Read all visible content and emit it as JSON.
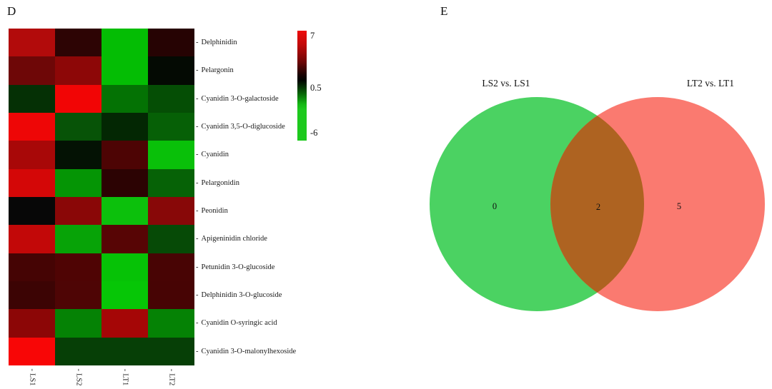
{
  "panels": {
    "heatmap": {
      "label": "D",
      "tick_char": "-",
      "columns": [
        "LS1",
        "LS2",
        "LT1",
        "LT2"
      ],
      "rows": [
        {
          "name": "Delphinidin",
          "colors": [
            "#b20b0b",
            "#2d0404",
            "#04bd04",
            "#260303"
          ]
        },
        {
          "name": "Pelargonin",
          "colors": [
            "#6e0707",
            "#8d0707",
            "#04bd04",
            "#040a03"
          ]
        },
        {
          "name": "Cyanidin 3-O-galactoside",
          "colors": [
            "#053005",
            "#f20505",
            "#047204",
            "#054e05"
          ]
        },
        {
          "name": "Cyanidin 3,5-O-diglucoside",
          "colors": [
            "#ee0606",
            "#075307",
            "#032703",
            "#066006"
          ]
        },
        {
          "name": "Cyanidin",
          "colors": [
            "#a80808",
            "#041204",
            "#4d0404",
            "#09c009"
          ]
        },
        {
          "name": "Pelargonidin",
          "colors": [
            "#d40707",
            "#059505",
            "#2c0303",
            "#066206"
          ]
        },
        {
          "name": "Peonidin",
          "colors": [
            "#070707",
            "#8a0707",
            "#0cc00c",
            "#880808"
          ]
        },
        {
          "name": "Apigeninidin chloride",
          "colors": [
            "#c20808",
            "#07a307",
            "#570505",
            "#064a06"
          ]
        },
        {
          "name": "Petunidin 3-O-glucoside",
          "colors": [
            "#450404",
            "#4f0404",
            "#06c206",
            "#480404"
          ]
        },
        {
          "name": "Delphinidin 3-O-glucoside",
          "colors": [
            "#3c0404",
            "#4e0505",
            "#06c606",
            "#470404"
          ]
        },
        {
          "name": "Cyanidin O-syringic acid",
          "colors": [
            "#8c0606",
            "#058205",
            "#a50606",
            "#058205"
          ]
        },
        {
          "name": "Cyanidin 3-O-malonylhexoside",
          "colors": [
            "#f80606",
            "#063f06",
            "#063f06",
            "#063f06"
          ]
        }
      ],
      "colorbar": {
        "max_label": "7",
        "mid_label": "0.5",
        "min_label": "-6",
        "gradient": [
          [
            "#ee0b0b",
            "0%"
          ],
          [
            "#c00909",
            "13%"
          ],
          [
            "#700606",
            "28%"
          ],
          [
            "#1a0202",
            "40%"
          ],
          [
            "#000300",
            "45%"
          ],
          [
            "#032803",
            "50%"
          ],
          [
            "#076b07",
            "58%"
          ],
          [
            "#15b815",
            "67%"
          ],
          [
            "#1dc91d",
            "72%"
          ],
          [
            "#1dc91d",
            "100%"
          ]
        ]
      }
    },
    "venn": {
      "label": "E",
      "left_set": {
        "label": "LS2 vs. LS1",
        "count": "0",
        "color": "#4bd262"
      },
      "right_set": {
        "label": "LT2 vs. LT1",
        "count": "5",
        "color": "#fa7a70"
      },
      "intersection": {
        "count": "2",
        "color": "#ae6321"
      }
    }
  },
  "chart_data": [
    {
      "type": "heatmap",
      "panel": "D",
      "columns": [
        "LS1",
        "LS2",
        "LT1",
        "LT2"
      ],
      "rows": [
        "Delphinidin",
        "Pelargonin",
        "Cyanidin 3-O-galactoside",
        "Cyanidin 3,5-O-diglucoside",
        "Cyanidin",
        "Pelargonidin",
        "Peonidin",
        "Apigeninidin chloride",
        "Petunidin 3-O-glucoside",
        "Delphinidin 3-O-glucoside",
        "Cyanidin O-syringic acid",
        "Cyanidin 3-O-malonylhexoside"
      ],
      "values_estimated_from_color": true,
      "values": [
        [
          5.0,
          1.6,
          -4.3,
          1.5
        ],
        [
          3.3,
          4.1,
          -4.3,
          0.3
        ],
        [
          -0.7,
          6.7,
          -2.4,
          -1.5
        ],
        [
          6.6,
          -1.6,
          -0.5,
          -1.9
        ],
        [
          4.8,
          0.0,
          2.5,
          -4.4
        ],
        [
          5.9,
          -3.3,
          1.6,
          -2.0
        ],
        [
          0.5,
          4.0,
          -4.4,
          4.0
        ],
        [
          5.4,
          -3.7,
          2.7,
          -1.4
        ],
        [
          2.3,
          2.5,
          -4.4,
          2.3
        ],
        [
          2.0,
          2.5,
          -4.5,
          2.3
        ],
        [
          4.1,
          -2.8,
          4.7,
          -2.8
        ],
        [
          6.8,
          -1.1,
          -1.1,
          -1.1
        ]
      ],
      "scale": {
        "max": 7,
        "mid": 0.5,
        "min": -6,
        "max_color": "red",
        "mid_color": "black",
        "min_color": "green"
      },
      "legend_position": "right"
    },
    {
      "type": "venn",
      "panel": "E",
      "sets": [
        {
          "label": "LS2 vs. LS1",
          "unique": 0,
          "color": "#4bd262"
        },
        {
          "label": "LT2 vs. LT1",
          "unique": 5,
          "color": "#fa7a70"
        }
      ],
      "intersection": 2
    }
  ]
}
